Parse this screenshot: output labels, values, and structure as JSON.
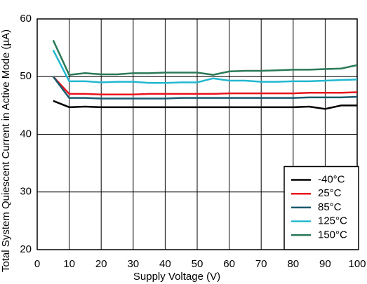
{
  "chart_data": {
    "type": "line",
    "x_label": "Supply Voltage (V)",
    "y_label": "Total System Quiescent Current in Active Mode (µA)",
    "x": [
      5,
      10,
      15,
      20,
      25,
      30,
      35,
      40,
      45,
      50,
      55,
      60,
      65,
      70,
      75,
      80,
      85,
      90,
      95,
      100
    ],
    "series": [
      {
        "name": "-40°C",
        "color": "#000000",
        "values": [
          45.8,
          44.7,
          44.8,
          44.7,
          44.7,
          44.7,
          44.7,
          44.7,
          44.7,
          44.7,
          44.7,
          44.7,
          44.7,
          44.7,
          44.7,
          44.7,
          44.8,
          44.4,
          45.0,
          45.0
        ]
      },
      {
        "name": "25°C",
        "color": "#e8141e",
        "values": [
          50.0,
          47.0,
          47.0,
          46.9,
          46.9,
          46.9,
          47.0,
          47.0,
          47.0,
          47.0,
          47.0,
          47.1,
          47.1,
          47.1,
          47.1,
          47.1,
          47.2,
          47.2,
          47.2,
          47.3
        ]
      },
      {
        "name": "85°C",
        "color": "#1a5a6e",
        "values": [
          50.0,
          46.3,
          46.3,
          46.2,
          46.2,
          46.2,
          46.2,
          46.2,
          46.3,
          46.3,
          46.3,
          46.3,
          46.3,
          46.3,
          46.3,
          46.3,
          46.4,
          46.4,
          46.4,
          46.5
        ]
      },
      {
        "name": "125°C",
        "color": "#22b8d0",
        "values": [
          54.6,
          49.2,
          49.2,
          49.0,
          49.1,
          49.1,
          48.9,
          48.9,
          49.0,
          49.0,
          49.7,
          49.3,
          49.3,
          49.1,
          49.1,
          49.2,
          49.2,
          49.3,
          49.4,
          49.5
        ]
      },
      {
        "name": "150°C",
        "color": "#2a7a58",
        "values": [
          56.3,
          50.3,
          50.6,
          50.4,
          50.4,
          50.6,
          50.6,
          50.7,
          50.7,
          50.7,
          50.3,
          50.9,
          51.0,
          51.0,
          51.1,
          51.2,
          51.2,
          51.3,
          51.4,
          52.0
        ]
      }
    ],
    "xlim": [
      0,
      100
    ],
    "xticks": [
      0,
      10,
      20,
      30,
      40,
      50,
      60,
      70,
      80,
      90,
      100
    ],
    "ylim": [
      20,
      60
    ],
    "yticks": [
      20,
      30,
      40,
      50,
      60
    ],
    "grid": true,
    "legend": "lower right"
  }
}
